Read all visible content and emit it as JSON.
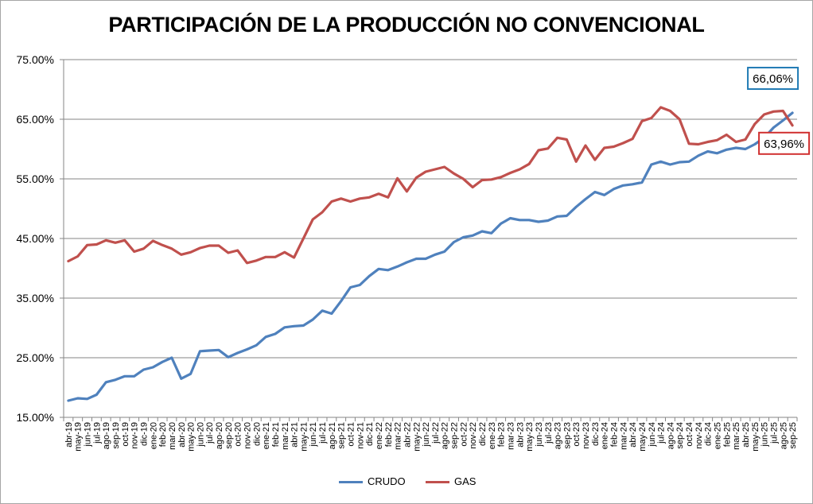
{
  "chart_data": {
    "type": "line",
    "title": "PARTICIPACIÓN DE LA PRODUCCIÓN NO CONVENCIONAL",
    "xlabel": "",
    "ylabel": "",
    "ylim": [
      15,
      75
    ],
    "yticks": [
      "15.00%",
      "25.00%",
      "35.00%",
      "45.00%",
      "55.00%",
      "65.00%",
      "75.00%"
    ],
    "ytick_values": [
      15,
      25,
      35,
      45,
      55,
      65,
      75
    ],
    "grid": true,
    "legend_position": "bottom",
    "categories": [
      "abr-19",
      "may-19",
      "jun-19",
      "jul-19",
      "ago-19",
      "sep-19",
      "oct-19",
      "nov-19",
      "dic-19",
      "ene-20",
      "feb-20",
      "mar-20",
      "abr-20",
      "may-20",
      "jun-20",
      "jul-20",
      "ago-20",
      "sep-20",
      "oct-20",
      "nov-20",
      "dic-20",
      "ene-21",
      "feb-21",
      "mar-21",
      "abr-21",
      "may-21",
      "jun-21",
      "jul-21",
      "ago-21",
      "sep-21",
      "oct-21",
      "nov-21",
      "dic-21",
      "ene-22",
      "feb-22",
      "mar-22",
      "abr-22",
      "may-22",
      "jun-22",
      "jul-22",
      "ago-22",
      "sep-22",
      "oct-22",
      "nov-22",
      "dic-22",
      "ene-23",
      "feb-23",
      "mar-23",
      "abr-23",
      "may-23",
      "jun-23",
      "jul-23",
      "ago-23",
      "sep-23",
      "oct-23",
      "nov-23",
      "dic-23",
      "ene-24",
      "feb-24",
      "mar-24",
      "abr-24",
      "may-24",
      "jun-24",
      "jul-24",
      "ago-24",
      "sep-24",
      "oct-24",
      "nov-24",
      "dic-24",
      "ene-25",
      "feb-25",
      "mar-25",
      "abr-25",
      "may-25",
      "jun-25",
      "jul-25",
      "ago-25",
      "sep-25"
    ],
    "series": [
      {
        "name": "CRUDO",
        "color": "#4f81bd",
        "values": [
          17.8,
          18.2,
          18.1,
          18.8,
          20.9,
          21.3,
          21.9,
          21.9,
          23.0,
          23.4,
          24.3,
          25.0,
          21.5,
          22.3,
          26.1,
          26.2,
          26.3,
          25.1,
          25.8,
          26.4,
          27.1,
          28.5,
          29.0,
          30.1,
          30.3,
          30.4,
          31.4,
          32.9,
          32.4,
          34.5,
          36.8,
          37.2,
          38.7,
          39.9,
          39.7,
          40.3,
          41.0,
          41.6,
          41.6,
          42.3,
          42.8,
          44.4,
          45.2,
          45.5,
          46.2,
          45.9,
          47.5,
          48.4,
          48.1,
          48.1,
          47.8,
          48.0,
          48.7,
          48.8,
          50.3,
          51.6,
          52.8,
          52.3,
          53.3,
          53.9,
          54.1,
          54.4,
          57.4,
          57.9,
          57.4,
          57.8,
          57.9,
          58.9,
          59.6,
          59.3,
          59.9,
          60.2,
          60.0,
          60.8,
          61.9,
          63.6,
          64.8,
          66.06
        ]
      },
      {
        "name": "GAS",
        "color": "#c0504d",
        "values": [
          41.2,
          42.0,
          43.9,
          44.0,
          44.7,
          44.3,
          44.7,
          42.8,
          43.3,
          44.6,
          43.9,
          43.3,
          42.3,
          42.7,
          43.4,
          43.8,
          43.8,
          42.6,
          43.0,
          40.9,
          41.3,
          41.9,
          41.9,
          42.7,
          41.8,
          45.0,
          48.2,
          49.4,
          51.2,
          51.7,
          51.2,
          51.7,
          51.9,
          52.5,
          51.9,
          55.1,
          52.9,
          55.2,
          56.2,
          56.6,
          57.0,
          55.9,
          55.0,
          53.6,
          54.8,
          54.9,
          55.3,
          56.0,
          56.6,
          57.5,
          59.8,
          60.1,
          61.9,
          61.6,
          57.9,
          60.6,
          58.2,
          60.2,
          60.4,
          61.0,
          61.7,
          64.7,
          65.2,
          67.0,
          66.4,
          65.0,
          60.9,
          60.8,
          61.2,
          61.5,
          62.4,
          61.2,
          61.6,
          64.2,
          65.8,
          66.3,
          66.4,
          63.96
        ]
      }
    ],
    "annotations": [
      {
        "series": "CRUDO",
        "text": "66,06%",
        "box_color": "#1f7ab4"
      },
      {
        "series": "GAS",
        "text": "63,96%",
        "box_color": "#d03030"
      }
    ]
  }
}
